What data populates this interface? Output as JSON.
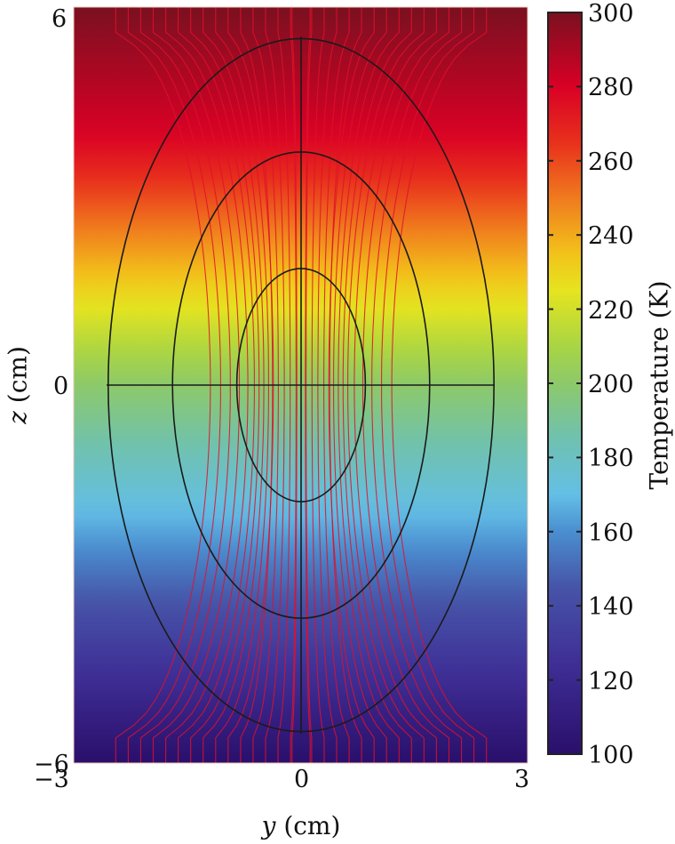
{
  "chart_data": {
    "type": "heatmap",
    "title": "",
    "description": "Temperature field (color map) with red field/streamlines and three black elliptical contours centered at origin",
    "xlabel_var": "y",
    "xlabel_unit": "(cm)",
    "ylabel_var": "z",
    "ylabel_unit": "(cm)",
    "xlim": [
      -3,
      3
    ],
    "ylim": [
      -6,
      6
    ],
    "x_ticks": [
      "−3",
      "0",
      "3"
    ],
    "y_ticks": [
      "6",
      "0",
      "−6"
    ],
    "colorbar": {
      "label": "Temperature (K)",
      "range": [
        100,
        300
      ],
      "ticks": [
        "300",
        "280",
        "260",
        "240",
        "220",
        "200",
        "180",
        "160",
        "140",
        "120",
        "100"
      ],
      "colormap_stops": [
        {
          "value": 300,
          "color": "#7a1020"
        },
        {
          "value": 280,
          "color": "#d90025"
        },
        {
          "value": 265,
          "color": "#e8301c"
        },
        {
          "value": 250,
          "color": "#f07a1e"
        },
        {
          "value": 235,
          "color": "#f2c21a"
        },
        {
          "value": 225,
          "color": "#e6e41f"
        },
        {
          "value": 210,
          "color": "#a8d544"
        },
        {
          "value": 200,
          "color": "#8dc96a"
        },
        {
          "value": 185,
          "color": "#6fc1b0"
        },
        {
          "value": 170,
          "color": "#63bfe6"
        },
        {
          "value": 160,
          "color": "#4a8ed0"
        },
        {
          "value": 145,
          "color": "#4654a8"
        },
        {
          "value": 125,
          "color": "#3f2f96"
        },
        {
          "value": 100,
          "color": "#2a0f6b"
        }
      ]
    },
    "field_gradient_by_z": [
      {
        "z": 6,
        "T": 300
      },
      {
        "z": 4,
        "T": 280
      },
      {
        "z": 2,
        "T": 240
      },
      {
        "z": 0,
        "T": 200
      },
      {
        "z": -2,
        "T": 170
      },
      {
        "z": -4,
        "T": 135
      },
      {
        "z": -6,
        "T": 100
      }
    ],
    "ellipses": [
      {
        "name": "outer",
        "center": [
          0,
          0
        ],
        "semi_y": 2.55,
        "semi_z": 5.5
      },
      {
        "name": "middle",
        "center": [
          0,
          0
        ],
        "semi_y": 1.7,
        "semi_z": 3.7
      },
      {
        "name": "inner",
        "center": [
          0,
          0
        ],
        "semi_y": 0.85,
        "semi_z": 1.85
      }
    ],
    "axes_lines": [
      "horizontal line z=0 across outer ellipse",
      "vertical line y=0 across outer ellipse"
    ],
    "streamline_color": "#e0102a",
    "contour_color": "#1a1a1a",
    "grid": false,
    "legend": "colorbar right"
  }
}
